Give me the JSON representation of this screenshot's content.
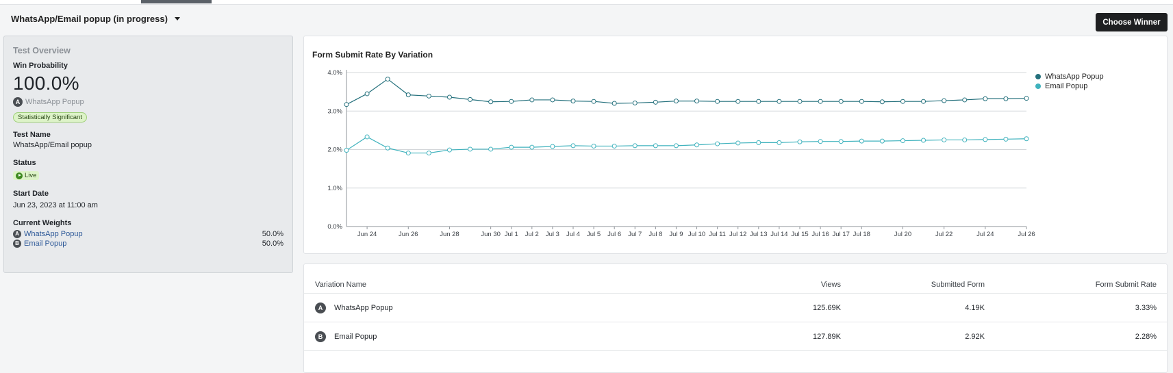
{
  "header": {
    "title": "WhatsApp/Email popup (in progress)",
    "choose_winner_label": "Choose Winner"
  },
  "overview": {
    "heading": "Test Overview",
    "win_probability_label": "Win Probability",
    "win_probability_value": "100.0%",
    "leader_letter": "A",
    "leader_name": "WhatsApp Popup",
    "significance_badge": "Statistically Significant",
    "test_name_label": "Test Name",
    "test_name_value": "WhatsApp/Email popup",
    "status_label": "Status",
    "status_value": "Live",
    "start_date_label": "Start Date",
    "start_date_value": "Jun 23, 2023 at 11:00 am",
    "weights_label": "Current Weights",
    "weights": [
      {
        "letter": "A",
        "name": "WhatsApp Popup",
        "weight": "50.0%"
      },
      {
        "letter": "B",
        "name": "Email Popup",
        "weight": "50.0%"
      }
    ]
  },
  "chart_data": {
    "type": "line",
    "title": "Form Submit Rate By Variation",
    "xlabel": "",
    "ylabel": "",
    "ylim": [
      0,
      4
    ],
    "y_ticks": [
      "0.0%",
      "1.0%",
      "2.0%",
      "3.0%",
      "4.0%"
    ],
    "x_tick_labels": [
      "Jun 24",
      "Jun 26",
      "Jun 28",
      "Jun 30",
      "Jul 1",
      "Jul 2",
      "Jul 3",
      "Jul 4",
      "Jul 5",
      "Jul 6",
      "Jul 7",
      "Jul 8",
      "Jul 9",
      "Jul 10",
      "Jul 11",
      "Jul 12",
      "Jul 13",
      "Jul 14",
      "Jul 15",
      "Jul 16",
      "Jul 17",
      "Jul 18",
      "Jul 20",
      "Jul 22",
      "Jul 24",
      "Jul 26"
    ],
    "x_tick_days": [
      1,
      3,
      5,
      7,
      8,
      9,
      10,
      11,
      12,
      13,
      14,
      15,
      16,
      17,
      18,
      19,
      20,
      21,
      22,
      23,
      24,
      25,
      27,
      29,
      31,
      33
    ],
    "x_range_days": [
      0,
      33
    ],
    "x_dates": [
      "Jun 23",
      "Jun 24",
      "Jun 25",
      "Jun 26",
      "Jun 27",
      "Jun 28",
      "Jun 29",
      "Jun 30",
      "Jul 1",
      "Jul 2",
      "Jul 3",
      "Jul 4",
      "Jul 5",
      "Jul 6",
      "Jul 7",
      "Jul 8",
      "Jul 9",
      "Jul 10",
      "Jul 11",
      "Jul 12",
      "Jul 13",
      "Jul 14",
      "Jul 15",
      "Jul 16",
      "Jul 17",
      "Jul 18",
      "Jul 19",
      "Jul 20",
      "Jul 21",
      "Jul 22",
      "Jul 23",
      "Jul 24",
      "Jul 25",
      "Jul 26"
    ],
    "grid": true,
    "legend_position": "top-right",
    "series": [
      {
        "name": "WhatsApp Popup",
        "color": "#24707c",
        "values": [
          3.17,
          3.45,
          3.83,
          3.42,
          3.39,
          3.36,
          3.3,
          3.24,
          3.25,
          3.29,
          3.29,
          3.26,
          3.25,
          3.2,
          3.21,
          3.23,
          3.26,
          3.26,
          3.25,
          3.25,
          3.25,
          3.25,
          3.25,
          3.25,
          3.25,
          3.25,
          3.24,
          3.25,
          3.25,
          3.27,
          3.29,
          3.32,
          3.32,
          3.33
        ]
      },
      {
        "name": "Email Popup",
        "color": "#3fb2bd",
        "values": [
          1.98,
          2.33,
          2.04,
          1.91,
          1.91,
          1.99,
          2.01,
          2.01,
          2.06,
          2.06,
          2.08,
          2.1,
          2.09,
          2.09,
          2.1,
          2.1,
          2.1,
          2.12,
          2.15,
          2.17,
          2.18,
          2.18,
          2.2,
          2.21,
          2.21,
          2.22,
          2.22,
          2.23,
          2.24,
          2.25,
          2.25,
          2.26,
          2.27,
          2.28
        ]
      }
    ]
  },
  "table": {
    "headers": {
      "variation_name": "Variation Name",
      "views": "Views",
      "submitted": "Submitted Form",
      "rate": "Form Submit Rate"
    },
    "rows": [
      {
        "letter": "A",
        "name": "WhatsApp Popup",
        "views": "125.69K",
        "submitted": "4.19K",
        "rate": "3.33%"
      },
      {
        "letter": "B",
        "name": "Email Popup",
        "views": "127.89K",
        "submitted": "2.92K",
        "rate": "2.28%"
      }
    ]
  }
}
